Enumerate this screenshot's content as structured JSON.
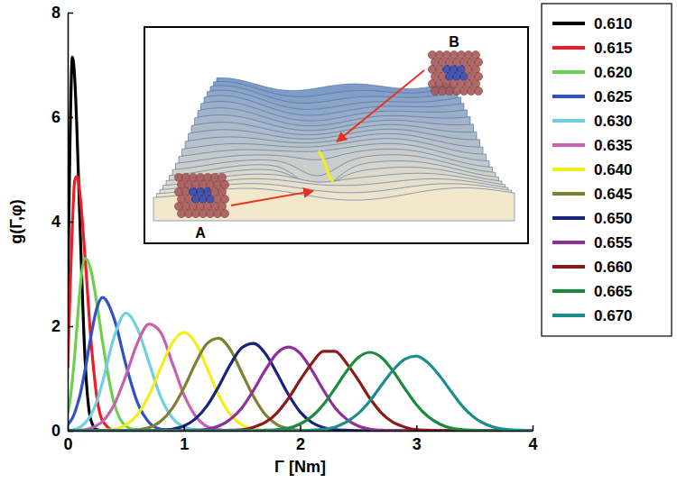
{
  "chart_data": {
    "type": "line",
    "x_label": "Γ [Nm]",
    "y_label": "g(Γ,φ)",
    "annotations": [
      "A",
      "B"
    ],
    "xlim": [
      0,
      4
    ],
    "ylim": [
      0,
      8
    ],
    "xticks": [
      0,
      1,
      2,
      3,
      4
    ],
    "yticks": [
      0,
      2,
      4,
      6,
      8
    ],
    "grid": false,
    "legend": "right",
    "x": [
      0,
      0.02,
      0.04,
      0.06,
      0.08,
      0.1,
      0.15,
      0.2,
      0.25,
      0.3,
      0.4,
      0.5,
      0.6,
      0.7,
      0.8,
      0.9,
      1,
      1.1,
      1.2,
      1.3,
      1.4,
      1.5,
      1.6,
      1.7,
      1.8,
      1.9,
      2,
      2.1,
      2.2,
      2.3,
      2.4,
      2.5,
      2.6,
      2.7,
      2.8,
      2.9,
      3,
      3.1,
      3.2,
      3.3,
      3.4,
      3.5,
      3.6,
      3.7,
      3.8,
      3.9,
      4
    ],
    "series": [
      {
        "name": "0.610",
        "color": "#000000",
        "values": [
          2.57,
          5.54,
          7.15,
          6.76,
          5.72,
          4.34,
          1.34,
          0.2,
          0.02,
          0,
          0,
          0,
          0,
          0,
          0,
          0,
          0,
          0,
          0,
          0,
          0,
          0,
          0,
          0,
          0,
          0,
          0,
          0,
          0,
          0,
          0,
          0,
          0,
          0,
          0,
          0,
          0,
          0,
          0,
          0,
          0,
          0,
          0,
          0,
          0,
          0,
          0
        ]
      },
      {
        "name": "0.615",
        "color": "#ee1c25",
        "values": [
          1.2,
          2.65,
          3.92,
          4.78,
          4.87,
          4.64,
          3.3,
          1.74,
          0.66,
          0.19,
          0.01,
          0,
          0,
          0,
          0,
          0,
          0,
          0,
          0,
          0,
          0,
          0,
          0,
          0,
          0,
          0,
          0,
          0,
          0,
          0,
          0,
          0,
          0,
          0,
          0,
          0,
          0,
          0,
          0,
          0,
          0,
          0,
          0,
          0,
          0,
          0,
          0
        ]
      },
      {
        "name": "0.620",
        "color": "#6ccf4f",
        "values": [
          0.33,
          0.58,
          0.96,
          1.44,
          2,
          2.56,
          3.3,
          3.07,
          2.45,
          1.7,
          0.52,
          0.09,
          0.01,
          0,
          0,
          0,
          0,
          0,
          0,
          0,
          0,
          0,
          0,
          0,
          0,
          0,
          0,
          0,
          0,
          0,
          0,
          0,
          0,
          0,
          0,
          0,
          0,
          0,
          0,
          0,
          0,
          0,
          0,
          0,
          0,
          0,
          0
        ]
      },
      {
        "name": "0.625",
        "color": "#2f52c8",
        "values": [
          0.11,
          0.17,
          0.24,
          0.34,
          0.48,
          0.63,
          1.17,
          1.81,
          2.34,
          2.55,
          2.14,
          1.27,
          0.54,
          0.16,
          0.03,
          0.01,
          0,
          0,
          0,
          0,
          0,
          0,
          0,
          0,
          0,
          0,
          0,
          0,
          0,
          0,
          0,
          0,
          0,
          0,
          0,
          0,
          0,
          0,
          0,
          0,
          0,
          0,
          0,
          0,
          0,
          0,
          0
        ]
      },
      {
        "name": "0.630",
        "color": "#6fd0e0",
        "values": [
          0,
          0.01,
          0.01,
          0.03,
          0.04,
          0.06,
          0.15,
          0.3,
          0.56,
          0.93,
          1.8,
          2.25,
          1.95,
          1.3,
          0.65,
          0.25,
          0.07,
          0.02,
          0,
          0,
          0,
          0,
          0,
          0,
          0,
          0,
          0,
          0,
          0,
          0,
          0,
          0,
          0,
          0,
          0,
          0,
          0,
          0,
          0,
          0,
          0,
          0,
          0,
          0,
          0,
          0,
          0
        ]
      },
      {
        "name": "0.635",
        "color": "#c860b0",
        "values": [
          0,
          0,
          0,
          0,
          0,
          0.01,
          0.02,
          0.05,
          0.1,
          0.18,
          0.5,
          1.05,
          1.68,
          2.04,
          1.88,
          1.3,
          0.69,
          0.28,
          0.08,
          0.02,
          0,
          0,
          0,
          0,
          0,
          0,
          0,
          0,
          0,
          0,
          0,
          0,
          0,
          0,
          0,
          0,
          0,
          0,
          0,
          0,
          0,
          0,
          0,
          0,
          0,
          0,
          0
        ]
      },
      {
        "name": "0.640",
        "color": "#f2ee1a",
        "values": [
          0,
          0,
          0,
          0,
          0,
          0,
          0,
          0,
          0,
          0.01,
          0.03,
          0.11,
          0.31,
          0.68,
          1.2,
          1.68,
          1.88,
          1.68,
          1.2,
          0.68,
          0.31,
          0.11,
          0.03,
          0.01,
          0,
          0,
          0,
          0,
          0,
          0,
          0,
          0,
          0,
          0,
          0,
          0,
          0,
          0,
          0,
          0,
          0,
          0,
          0,
          0,
          0,
          0,
          0
        ]
      },
      {
        "name": "0.645",
        "color": "#808033",
        "values": [
          0,
          0,
          0,
          0,
          0,
          0,
          0,
          0,
          0,
          0,
          0,
          0,
          0.02,
          0.06,
          0.18,
          0.43,
          0.82,
          1.29,
          1.67,
          1.77,
          1.55,
          1.1,
          0.65,
          0.31,
          0.12,
          0.04,
          0.01,
          0,
          0,
          0,
          0,
          0,
          0,
          0,
          0,
          0,
          0,
          0,
          0,
          0,
          0,
          0,
          0,
          0,
          0,
          0,
          0
        ]
      },
      {
        "name": "0.650",
        "color": "#17237d",
        "values": [
          0,
          0,
          0,
          0,
          0,
          0,
          0,
          0,
          0,
          0,
          0,
          0,
          0,
          0,
          0.01,
          0.03,
          0.09,
          0.23,
          0.48,
          0.85,
          1.27,
          1.59,
          1.67,
          1.48,
          1.1,
          0.69,
          0.36,
          0.16,
          0.06,
          0.02,
          0.01,
          0,
          0,
          0,
          0,
          0,
          0,
          0,
          0,
          0,
          0,
          0,
          0,
          0,
          0,
          0,
          0
        ]
      },
      {
        "name": "0.655",
        "color": "#8e2f9a",
        "values": [
          0,
          0,
          0,
          0,
          0,
          0,
          0,
          0,
          0,
          0,
          0,
          0,
          0,
          0,
          0,
          0,
          0,
          0.01,
          0.03,
          0.09,
          0.22,
          0.44,
          0.78,
          1.16,
          1.48,
          1.6,
          1.48,
          1.16,
          0.78,
          0.44,
          0.22,
          0.09,
          0.03,
          0.01,
          0,
          0,
          0,
          0,
          0,
          0,
          0,
          0,
          0,
          0,
          0,
          0,
          0
        ]
      },
      {
        "name": "0.660",
        "color": "#8b1a1a",
        "values": [
          0,
          0,
          0,
          0,
          0,
          0,
          0,
          0,
          0,
          0,
          0,
          0,
          0,
          0,
          0,
          0,
          0,
          0,
          0,
          0,
          0.01,
          0.02,
          0.07,
          0.16,
          0.34,
          0.62,
          0.97,
          1.29,
          1.52,
          1.52,
          1.29,
          0.97,
          0.62,
          0.34,
          0.16,
          0.07,
          0.02,
          0.01,
          0,
          0,
          0,
          0,
          0,
          0,
          0,
          0,
          0
        ]
      },
      {
        "name": "0.665",
        "color": "#1b8a3c",
        "values": [
          0,
          0,
          0,
          0,
          0,
          0,
          0,
          0,
          0,
          0,
          0,
          0,
          0,
          0,
          0,
          0,
          0,
          0,
          0,
          0,
          0,
          0,
          0,
          0.01,
          0.02,
          0.05,
          0.13,
          0.27,
          0.5,
          0.81,
          1.14,
          1.4,
          1.5,
          1.4,
          1.14,
          0.81,
          0.5,
          0.27,
          0.13,
          0.05,
          0.02,
          0.01,
          0,
          0,
          0,
          0,
          0
        ]
      },
      {
        "name": "0.670",
        "color": "#1e8c8c",
        "values": [
          0,
          0,
          0,
          0,
          0,
          0,
          0,
          0,
          0,
          0,
          0,
          0,
          0,
          0,
          0,
          0,
          0,
          0,
          0,
          0,
          0,
          0,
          0,
          0,
          0,
          0,
          0,
          0.01,
          0.03,
          0.07,
          0.17,
          0.33,
          0.57,
          0.87,
          1.16,
          1.37,
          1.43,
          1.3,
          1.05,
          0.75,
          0.46,
          0.25,
          0.12,
          0.05,
          0.02,
          0.01,
          0
        ]
      }
    ]
  }
}
